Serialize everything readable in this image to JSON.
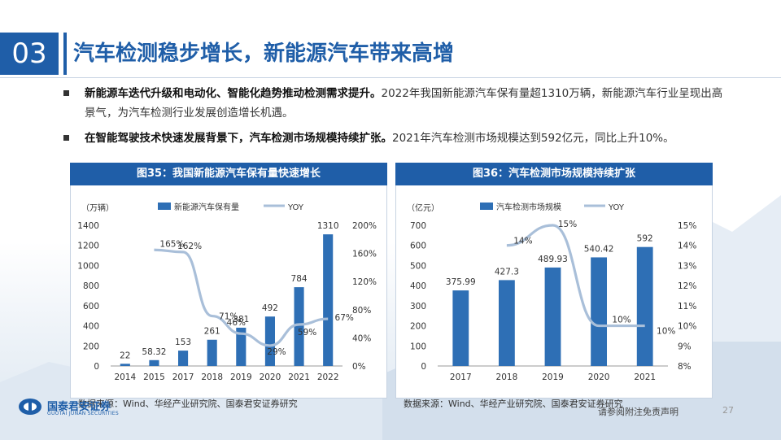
{
  "header": {
    "section_number": "03",
    "title": "汽车检测稳步增长，新能源汽车带来高增"
  },
  "bullets": [
    {
      "bold": "新能源车迭代升级和电动化、智能化趋势推动检测需求提升。",
      "text": "2022年我国新能源汽车保有量超1310万辆，新能源汽车行业呈现出高景气，为汽车检测行业发展创造增长机遇。"
    },
    {
      "bold": "在智能驾驶技术快速发展背景下，汽车检测市场规模持续扩张。",
      "text": "2021年汽车检测市场规模达到592亿元，同比上升10%。"
    }
  ],
  "chart_data": [
    {
      "type": "bar",
      "title": "图35：我国新能源汽车保有量快速增长",
      "unit_label": "（万辆）",
      "categories": [
        "2014",
        "2015",
        "2017",
        "2018",
        "2019",
        "2020",
        "2021",
        "2022"
      ],
      "series": [
        {
          "name": "新能源汽车保有量",
          "type": "bar",
          "axis": "left",
          "values": [
            22,
            58.32,
            153,
            261,
            381,
            492,
            784,
            1310
          ],
          "labels": [
            "22",
            "58.32",
            "153",
            "261",
            "381",
            "492",
            "784",
            "1310"
          ]
        },
        {
          "name": "YOY",
          "type": "line",
          "axis": "right",
          "values": [
            null,
            165,
            162,
            71,
            46,
            29,
            59,
            67
          ],
          "labels": [
            "",
            "165%",
            "162%",
            "71%",
            "46%",
            "29%",
            "59%",
            "67%"
          ]
        }
      ],
      "y_left": {
        "min": 0,
        "max": 1400,
        "ticks": [
          "0",
          "200",
          "400",
          "600",
          "800",
          "1000",
          "1200",
          "1400"
        ]
      },
      "y_right": {
        "min": 0,
        "max": 200,
        "ticks": [
          "0%",
          "40%",
          "80%",
          "120%",
          "160%",
          "200%"
        ]
      },
      "legend_position": "top",
      "grid": false,
      "source": "数据来源：Wind、华经产业研究院、国泰君安证券研究"
    },
    {
      "type": "bar",
      "title": "图36：汽车检测市场规模持续扩张",
      "unit_label": "（亿元）",
      "categories": [
        "2017",
        "2018",
        "2019",
        "2020",
        "2021"
      ],
      "series": [
        {
          "name": "汽车检测市场规模",
          "type": "bar",
          "axis": "left",
          "values": [
            375.99,
            427.3,
            489.93,
            540.42,
            592
          ],
          "labels": [
            "375.99",
            "427.3",
            "489.93",
            "540.42",
            "592"
          ]
        },
        {
          "name": "YOY",
          "type": "line",
          "axis": "right",
          "values": [
            null,
            14,
            15,
            10,
            10
          ],
          "labels": [
            "",
            "14%",
            "15%",
            "10%",
            "10%"
          ]
        }
      ],
      "y_left": {
        "min": 0,
        "max": 700,
        "ticks": [
          "0",
          "100",
          "200",
          "300",
          "400",
          "500",
          "600",
          "700"
        ]
      },
      "y_right": {
        "min": 8,
        "max": 15,
        "ticks": [
          "8%",
          "9%",
          "10%",
          "11%",
          "12%",
          "13%",
          "14%",
          "15%"
        ]
      },
      "legend_position": "top",
      "grid": false,
      "source": "数据来源：Wind、华经产业研究院、国泰君安证券研究"
    }
  ],
  "colors": {
    "bar": "#2e6fb5",
    "line": "#a9bfd9",
    "brand": "#1f5ea8"
  },
  "footer": {
    "logo_cn": "国泰君安证券",
    "logo_en": "GUOTAI JUNAN SECURITIES",
    "disclaimer": "请参阅附注免责声明",
    "page": "27"
  }
}
